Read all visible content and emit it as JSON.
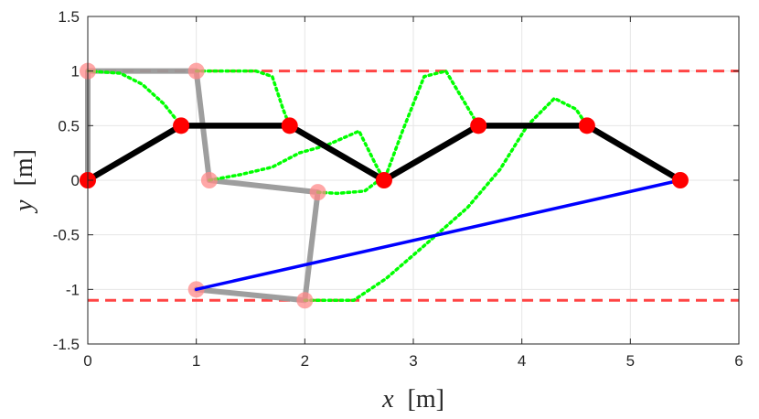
{
  "chart_data": {
    "type": "line",
    "xlabel": {
      "var": "x",
      "unit": "[m]"
    },
    "ylabel": {
      "var": "y",
      "unit": "[m]"
    },
    "xlim": [
      0,
      6
    ],
    "ylim": [
      -1.5,
      1.5
    ],
    "xticks": [
      0,
      1,
      2,
      3,
      4,
      5,
      6
    ],
    "yticks": [
      -1.5,
      -1,
      -0.5,
      0,
      0.5,
      1,
      1.5
    ],
    "xtick_labels": [
      "0",
      "1",
      "2",
      "3",
      "4",
      "5",
      "6"
    ],
    "ytick_labels": [
      "-1.5",
      "-1",
      "-0.5",
      "0",
      "0.5",
      "1",
      "1.5"
    ],
    "grid": true,
    "limits": [
      {
        "y": 1.0,
        "color": "#ff4444",
        "style": "dashed"
      },
      {
        "y": -1.1,
        "color": "#ff4444",
        "style": "dashed"
      }
    ],
    "series": [
      {
        "role": "final-chain",
        "color": "#000000",
        "marker_color": "#ff0000",
        "points": [
          [
            0,
            0
          ],
          [
            0.86,
            0.5
          ],
          [
            1.86,
            0.5
          ],
          [
            2.73,
            0
          ],
          [
            3.6,
            0.5
          ],
          [
            4.6,
            0.5
          ],
          [
            5.46,
            0
          ]
        ]
      },
      {
        "role": "initial-chain",
        "color": "#999999",
        "marker_color": "#ff8a8a",
        "points": [
          [
            0,
            0
          ],
          [
            0,
            1
          ],
          [
            1,
            1
          ],
          [
            1.12,
            0
          ],
          [
            2.12,
            -0.11
          ],
          [
            2,
            -1.1
          ],
          [
            1,
            -1
          ]
        ]
      },
      {
        "role": "end-effector-line",
        "color": "#0000ff",
        "points": [
          [
            1,
            -1
          ],
          [
            5.46,
            0
          ]
        ]
      },
      {
        "role": "trajectory",
        "color": "#00ff00",
        "style": "dotted",
        "paths": [
          [
            [
              0,
              1
            ],
            [
              0.3,
              0.98
            ],
            [
              0.5,
              0.88
            ],
            [
              0.7,
              0.7
            ],
            [
              0.86,
              0.5
            ]
          ],
          [
            [
              1,
              1
            ],
            [
              1.3,
              1.0
            ],
            [
              1.55,
              1.0
            ],
            [
              1.7,
              0.95
            ],
            [
              1.8,
              0.65
            ],
            [
              1.86,
              0.5
            ]
          ],
          [
            [
              1.12,
              0
            ],
            [
              1.4,
              0.05
            ],
            [
              1.7,
              0.12
            ],
            [
              1.95,
              0.25
            ],
            [
              2.2,
              0.32
            ],
            [
              2.5,
              0.45
            ],
            [
              2.65,
              0.15
            ],
            [
              2.73,
              0
            ]
          ],
          [
            [
              2.12,
              -0.11
            ],
            [
              2.3,
              -0.12
            ],
            [
              2.55,
              -0.1
            ],
            [
              2.75,
              0.05
            ],
            [
              2.9,
              0.45
            ],
            [
              3.1,
              0.95
            ],
            [
              3.3,
              1.0
            ],
            [
              3.45,
              0.75
            ],
            [
              3.6,
              0.5
            ]
          ],
          [
            [
              2,
              -1.1
            ],
            [
              2.45,
              -1.1
            ],
            [
              2.75,
              -0.9
            ],
            [
              3.1,
              -0.6
            ],
            [
              3.5,
              -0.25
            ],
            [
              3.8,
              0.1
            ],
            [
              4.05,
              0.5
            ],
            [
              4.3,
              0.75
            ],
            [
              4.5,
              0.65
            ],
            [
              4.6,
              0.5
            ]
          ]
        ]
      }
    ]
  }
}
